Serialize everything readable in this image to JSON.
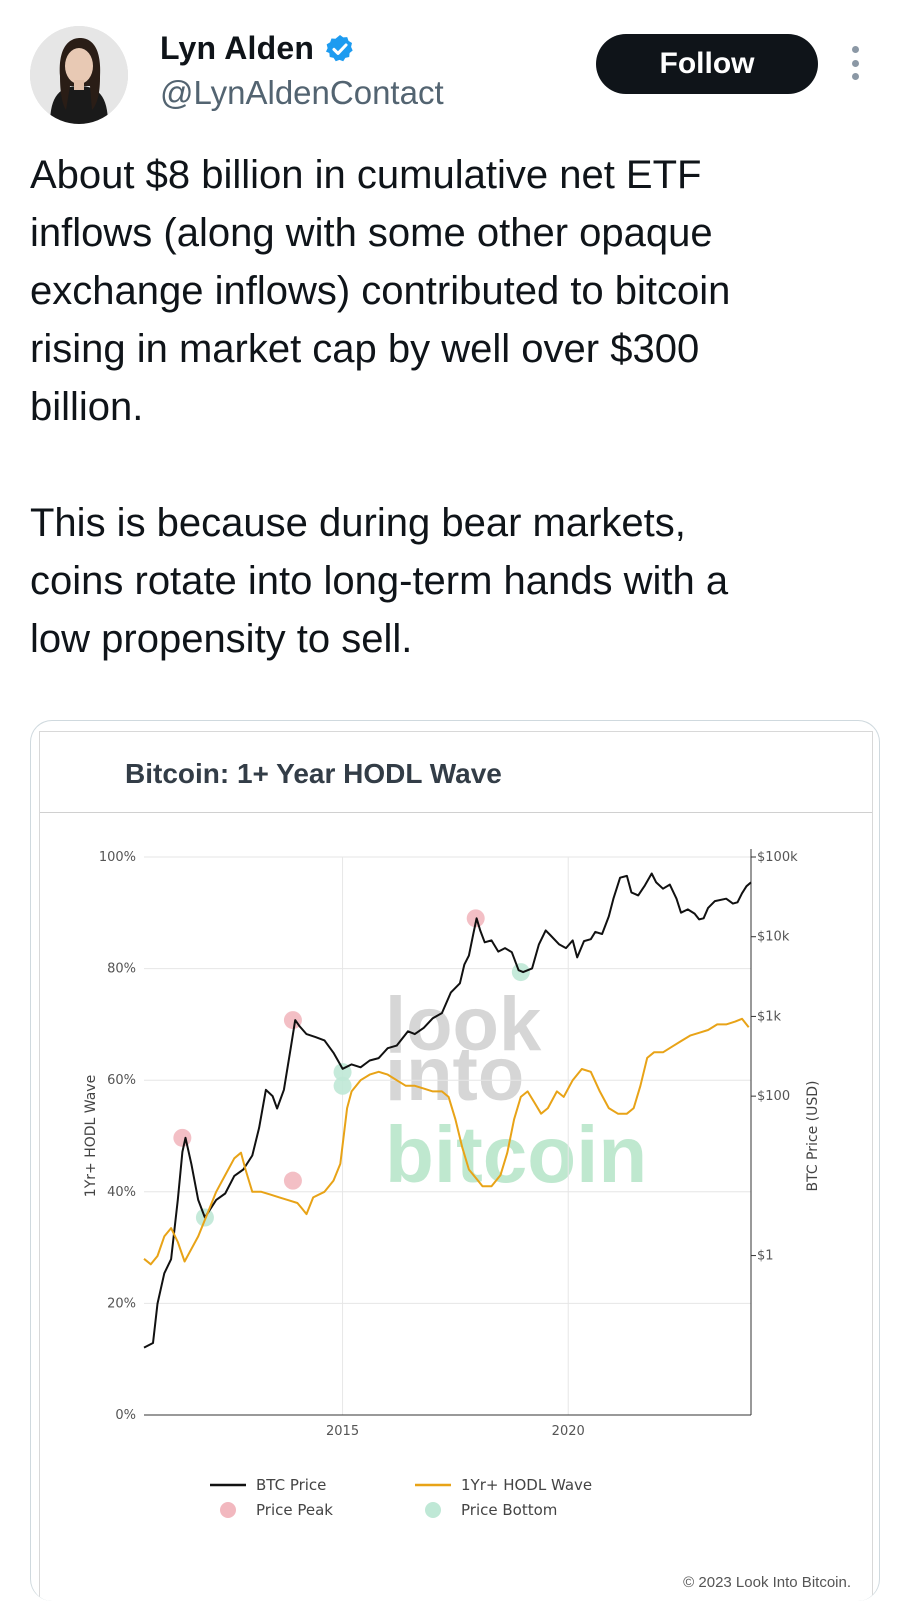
{
  "author": {
    "name": "Lyn Alden",
    "handle": "@LynAldenContact",
    "verified": true
  },
  "follow_label": "Follow",
  "tweet": {
    "lines": [
      "About $8 billion in cumulative net ETF",
      "inflows (along with some other opaque",
      "exchange inflows) contributed to bitcoin",
      "rising in market cap by well over $300",
      "billion.",
      "",
      "This is because during bear markets,",
      "coins rotate into long-term hands with a",
      "low propensity to sell."
    ]
  },
  "card": {
    "watermark": [
      "look",
      "into",
      "bitcoin"
    ],
    "copyright": "© 2023 Look Into Bitcoin."
  },
  "colors": {
    "btc": "#111111",
    "hodl": "#e8a317",
    "peak": "#f2b8bf",
    "bottom": "#bfe8d6",
    "accent": "#1d9bf0"
  },
  "chart_data": {
    "type": "line",
    "title": "Bitcoin: 1+ Year HODL Wave",
    "ylabel": "1Yr+ HODL Wave",
    "y2label": "BTC Price (USD)",
    "y_ticks": [
      "0%",
      "20%",
      "40%",
      "60%",
      "80%",
      "100%"
    ],
    "y_range": [
      0,
      100
    ],
    "y2_ticks": [
      "$1",
      "$100",
      "$1k",
      "$10k",
      "$100k"
    ],
    "y2_scale": "log",
    "y2_range": [
      0.01,
      100000
    ],
    "x_ticks": [
      "2015",
      "2020"
    ],
    "x_range": [
      2010.6,
      2024.05
    ],
    "grid": true,
    "legend_position": "bottom",
    "series": [
      {
        "name": "BTC Price",
        "axis": "right",
        "points": [
          [
            2010.6,
            0.07
          ],
          [
            2010.8,
            0.08
          ],
          [
            2010.9,
            0.25
          ],
          [
            2011.05,
            0.6
          ],
          [
            2011.2,
            0.9
          ],
          [
            2011.35,
            5
          ],
          [
            2011.45,
            20
          ],
          [
            2011.52,
            30
          ],
          [
            2011.65,
            14
          ],
          [
            2011.8,
            5
          ],
          [
            2011.95,
            3
          ],
          [
            2012.2,
            5
          ],
          [
            2012.4,
            6
          ],
          [
            2012.6,
            10
          ],
          [
            2012.8,
            12
          ],
          [
            2013.0,
            18
          ],
          [
            2013.15,
            40
          ],
          [
            2013.3,
            120
          ],
          [
            2013.45,
            100
          ],
          [
            2013.55,
            70
          ],
          [
            2013.7,
            120
          ],
          [
            2013.85,
            400
          ],
          [
            2013.95,
            900
          ],
          [
            2014.05,
            750
          ],
          [
            2014.2,
            600
          ],
          [
            2014.4,
            550
          ],
          [
            2014.6,
            500
          ],
          [
            2014.8,
            350
          ],
          [
            2015.0,
            220
          ],
          [
            2015.2,
            250
          ],
          [
            2015.4,
            230
          ],
          [
            2015.6,
            280
          ],
          [
            2015.8,
            300
          ],
          [
            2016.0,
            400
          ],
          [
            2016.2,
            430
          ],
          [
            2016.45,
            650
          ],
          [
            2016.6,
            600
          ],
          [
            2016.8,
            720
          ],
          [
            2017.0,
            950
          ],
          [
            2017.2,
            1100
          ],
          [
            2017.4,
            2000
          ],
          [
            2017.6,
            2600
          ],
          [
            2017.7,
            4500
          ],
          [
            2017.8,
            5800
          ],
          [
            2017.9,
            11000
          ],
          [
            2017.97,
            17000
          ],
          [
            2018.05,
            12000
          ],
          [
            2018.15,
            8500
          ],
          [
            2018.3,
            9000
          ],
          [
            2018.45,
            6500
          ],
          [
            2018.6,
            7200
          ],
          [
            2018.75,
            6400
          ],
          [
            2018.9,
            3800
          ],
          [
            2019.0,
            3600
          ],
          [
            2019.2,
            4000
          ],
          [
            2019.35,
            8000
          ],
          [
            2019.5,
            12000
          ],
          [
            2019.6,
            10500
          ],
          [
            2019.8,
            8000
          ],
          [
            2019.95,
            7200
          ],
          [
            2020.1,
            9000
          ],
          [
            2020.2,
            5500
          ],
          [
            2020.35,
            8800
          ],
          [
            2020.5,
            9300
          ],
          [
            2020.6,
            11500
          ],
          [
            2020.75,
            10800
          ],
          [
            2020.9,
            18000
          ],
          [
            2021.0,
            30000
          ],
          [
            2021.15,
            55000
          ],
          [
            2021.3,
            58000
          ],
          [
            2021.4,
            36000
          ],
          [
            2021.55,
            33000
          ],
          [
            2021.7,
            44000
          ],
          [
            2021.85,
            62000
          ],
          [
            2021.95,
            48000
          ],
          [
            2022.1,
            40000
          ],
          [
            2022.25,
            45000
          ],
          [
            2022.4,
            30000
          ],
          [
            2022.5,
            20000
          ],
          [
            2022.65,
            22000
          ],
          [
            2022.8,
            19500
          ],
          [
            2022.9,
            16500
          ],
          [
            2023.0,
            17000
          ],
          [
            2023.1,
            23000
          ],
          [
            2023.25,
            28000
          ],
          [
            2023.5,
            30000
          ],
          [
            2023.65,
            26000
          ],
          [
            2023.75,
            27000
          ],
          [
            2023.85,
            35000
          ],
          [
            2023.95,
            43000
          ],
          [
            2024.05,
            48000
          ]
        ]
      },
      {
        "name": "1Yr+ HODL Wave",
        "axis": "left",
        "points": [
          [
            2010.6,
            28
          ],
          [
            2010.75,
            27
          ],
          [
            2010.9,
            28.5
          ],
          [
            2011.05,
            32
          ],
          [
            2011.2,
            33.5
          ],
          [
            2011.35,
            31
          ],
          [
            2011.5,
            27.5
          ],
          [
            2011.6,
            29
          ],
          [
            2011.8,
            32
          ],
          [
            2012.0,
            36
          ],
          [
            2012.2,
            40
          ],
          [
            2012.4,
            43
          ],
          [
            2012.6,
            46
          ],
          [
            2012.75,
            47
          ],
          [
            2012.85,
            44
          ],
          [
            2013.0,
            40
          ],
          [
            2013.2,
            40
          ],
          [
            2013.4,
            39.5
          ],
          [
            2013.6,
            39
          ],
          [
            2013.8,
            38.5
          ],
          [
            2014.0,
            38
          ],
          [
            2014.1,
            37
          ],
          [
            2014.2,
            36
          ],
          [
            2014.35,
            39
          ],
          [
            2014.6,
            40
          ],
          [
            2014.8,
            42
          ],
          [
            2014.95,
            45
          ],
          [
            2015.1,
            55
          ],
          [
            2015.2,
            58
          ],
          [
            2015.4,
            60
          ],
          [
            2015.6,
            61
          ],
          [
            2015.8,
            61.5
          ],
          [
            2016.0,
            61
          ],
          [
            2016.2,
            60
          ],
          [
            2016.4,
            59
          ],
          [
            2016.6,
            59
          ],
          [
            2016.8,
            58.5
          ],
          [
            2017.0,
            58
          ],
          [
            2017.2,
            58
          ],
          [
            2017.35,
            57
          ],
          [
            2017.5,
            53
          ],
          [
            2017.65,
            48
          ],
          [
            2017.8,
            44
          ],
          [
            2018.0,
            42
          ],
          [
            2018.1,
            41
          ],
          [
            2018.3,
            41
          ],
          [
            2018.5,
            43
          ],
          [
            2018.65,
            47
          ],
          [
            2018.8,
            53
          ],
          [
            2018.95,
            57
          ],
          [
            2019.1,
            58
          ],
          [
            2019.25,
            56
          ],
          [
            2019.4,
            54
          ],
          [
            2019.55,
            55
          ],
          [
            2019.75,
            58
          ],
          [
            2019.9,
            57
          ],
          [
            2020.1,
            60
          ],
          [
            2020.3,
            62
          ],
          [
            2020.5,
            61.5
          ],
          [
            2020.7,
            58
          ],
          [
            2020.9,
            55
          ],
          [
            2021.1,
            54
          ],
          [
            2021.3,
            54
          ],
          [
            2021.45,
            55
          ],
          [
            2021.6,
            59
          ],
          [
            2021.75,
            64
          ],
          [
            2021.9,
            65
          ],
          [
            2022.1,
            65
          ],
          [
            2022.3,
            66
          ],
          [
            2022.5,
            67
          ],
          [
            2022.7,
            68
          ],
          [
            2022.9,
            68.5
          ],
          [
            2023.1,
            69
          ],
          [
            2023.3,
            70
          ],
          [
            2023.5,
            70
          ],
          [
            2023.7,
            70.5
          ],
          [
            2023.85,
            71
          ],
          [
            2024.0,
            69.5
          ]
        ]
      }
    ],
    "markers": {
      "price_peak": [
        [
          2011.45,
          30
        ],
        [
          2013.9,
          900
        ],
        [
          2017.95,
          17000
        ],
        [
          2013.9,
          42
        ]
      ],
      "price_bottom": [
        [
          2011.95,
          3
        ],
        [
          2015.0,
          200
        ],
        [
          2018.95,
          3600
        ],
        [
          2015.0,
          59
        ]
      ]
    },
    "legend": [
      {
        "label": "BTC Price",
        "kind": "line",
        "color_key": "btc"
      },
      {
        "label": "1Yr+ HODL Wave",
        "kind": "line",
        "color_key": "hodl"
      },
      {
        "label": "Price Peak",
        "kind": "dot",
        "color_key": "peak"
      },
      {
        "label": "Price Bottom",
        "kind": "dot",
        "color_key": "bottom"
      }
    ]
  }
}
